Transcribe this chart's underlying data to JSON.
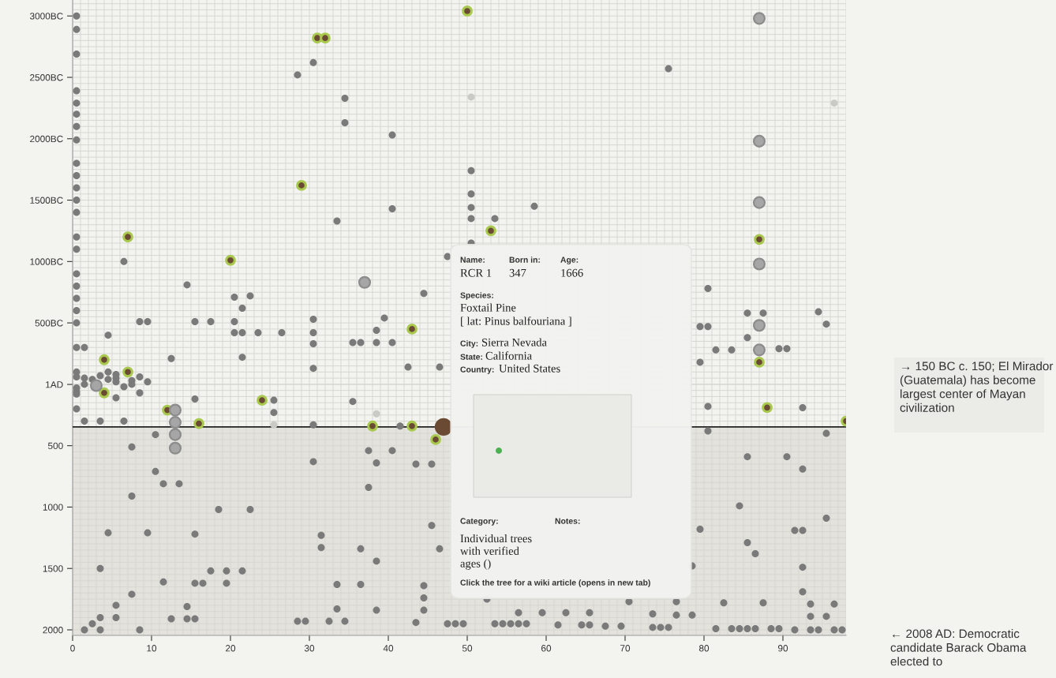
{
  "chart_data": {
    "type": "scatter",
    "marker": "circle",
    "grid": true,
    "xlim": [
      0,
      98
    ],
    "ylim": [
      2045,
      -3130
    ],
    "xticks": [
      0,
      10,
      20,
      30,
      40,
      50,
      60,
      70,
      80,
      90
    ],
    "yticks": [
      {
        "value": -3000,
        "label": "3000BC"
      },
      {
        "value": -2500,
        "label": "2500BC"
      },
      {
        "value": -2000,
        "label": "2000BC"
      },
      {
        "value": -1500,
        "label": "1500BC"
      },
      {
        "value": -1000,
        "label": "1000BC"
      },
      {
        "value": -500,
        "label": "500BC"
      },
      {
        "value": 1,
        "label": "1AD"
      },
      500,
      1000,
      1500,
      2000
    ],
    "ref_lines": [
      {
        "axis": "y",
        "value": 347,
        "color": "#222222"
      }
    ],
    "bands": [
      {
        "axis": "y",
        "from": 347,
        "to": 2045,
        "color": "#dedcd6"
      }
    ],
    "series": [
      {
        "color": "#7a7a7a",
        "x": [
          0.5,
          0.5,
          0.5,
          0.5,
          0.5,
          0.5,
          0.5,
          0.5,
          0.5,
          0.5,
          0.5,
          0.5,
          0.5,
          0.5,
          0.5,
          0.5,
          0.5,
          0.5,
          0.5,
          0.5,
          0.5,
          0.5,
          0.5,
          0.5,
          0.5,
          0.5,
          0.5,
          1.5,
          1.5,
          1.5,
          1.5,
          1.5,
          2.5,
          2.5,
          3.5,
          3.5,
          3.5,
          3.5,
          3.5,
          4.5,
          4.5,
          4.5,
          4.5,
          5.5,
          5.5,
          5.5,
          5.5,
          5.5,
          5.5,
          6.5,
          6.5,
          6.5,
          7.5,
          7.5,
          7.5,
          7.5,
          7.5,
          8.5,
          8.5,
          8.5,
          8.5,
          9.5,
          9.5,
          9.5,
          10.5,
          10.5,
          11.5,
          11.5,
          12.5,
          12.5,
          13.5,
          14.5,
          14.5,
          14.5,
          15.5,
          15.5,
          15.5,
          15.5,
          15.5,
          16.5,
          17.5,
          17.5,
          18.5,
          19.5,
          19.5,
          20.5,
          20.5,
          20.5,
          21.5,
          21.5,
          21.5,
          21.5,
          22.5,
          22.5,
          23.5,
          25.5,
          25.5,
          26.5,
          28.5,
          28.5,
          29.5,
          30.5,
          30.5,
          30.5,
          30.5,
          30.5,
          30.5,
          30.5,
          31.5,
          31.5,
          32.5,
          33.5,
          33.5,
          33.5,
          34.5,
          34.5,
          34.5,
          35.5,
          35.5,
          36.5,
          36.5,
          36.5,
          37.5,
          37.5,
          38.5,
          38.5,
          38.5,
          38.5,
          38.5,
          39.5,
          40.5,
          40.5,
          40.5,
          40.5,
          41.5,
          42.5,
          43.5,
          43.5,
          44.5,
          44.5,
          44.5,
          44.5,
          45.5,
          45.5,
          46.5,
          46.5,
          47.5,
          47.5,
          48.5,
          49.5,
          50.5,
          50.5,
          50.5,
          50.5,
          50.5,
          52.5,
          53.5,
          53.5,
          54.5,
          55.5,
          56.5,
          56.5,
          57.5,
          58.5,
          59.5,
          61.5,
          62.5,
          64.5,
          65.5,
          65.5,
          67.5,
          69.5,
          70.5,
          73.5,
          73.5,
          74.5,
          75.5,
          75.5,
          76.5,
          76.5,
          78.5,
          78.5,
          79.5,
          79.5,
          79.5,
          80.5,
          80.5,
          80.5,
          80.5,
          81.5,
          81.5,
          82.5,
          83.5,
          83.5,
          84.5,
          84.5,
          85.5,
          85.5,
          85.5,
          85.5,
          85.5,
          86.5,
          86.5,
          87.5,
          87.5,
          88.5,
          89.5,
          89.5,
          90.5,
          90.5,
          91.5,
          91.5,
          92.5,
          92.5,
          92.5,
          92.5,
          92.5,
          93.5,
          93.5,
          93.5,
          94.5,
          94.5,
          95.5,
          95.5,
          95.5,
          95.5,
          96.5,
          96.5,
          97.5
        ],
        "values": [
          -3000,
          -2890,
          -2690,
          -2390,
          -2290,
          -2200,
          -2100,
          -1990,
          -1800,
          -1700,
          -1600,
          -1500,
          -1400,
          -1200,
          -1100,
          -900,
          -800,
          -700,
          -600,
          -500,
          -300,
          -100,
          -60,
          30,
          60,
          80,
          200,
          -300,
          -50,
          0,
          300,
          2000,
          -40,
          1950,
          -70,
          300,
          1500,
          1900,
          2000,
          -400,
          -100,
          -40,
          1210,
          -80,
          -50,
          -20,
          110,
          1800,
          1900,
          -1000,
          20,
          300,
          -30,
          0,
          510,
          910,
          1710,
          -510,
          -60,
          70,
          2000,
          -510,
          -20,
          1210,
          410,
          710,
          810,
          1610,
          -210,
          1910,
          810,
          -810,
          1810,
          1910,
          -510,
          120,
          1220,
          1620,
          1910,
          1620,
          -510,
          1520,
          1020,
          1520,
          1620,
          -710,
          -510,
          -420,
          -620,
          -420,
          -220,
          1520,
          -720,
          1020,
          -420,
          130,
          230,
          -420,
          -2520,
          1930,
          1930,
          -2620,
          -530,
          -420,
          -330,
          -130,
          330,
          630,
          1230,
          1330,
          1930,
          -1330,
          1630,
          1830,
          -2330,
          -2130,
          1930,
          -340,
          140,
          -340,
          1340,
          1630,
          540,
          840,
          -440,
          -340,
          640,
          1440,
          1840,
          -540,
          -2030,
          -1430,
          -340,
          540,
          340,
          -140,
          650,
          1940,
          -740,
          1640,
          1740,
          1840,
          650,
          1150,
          -140,
          1340,
          -1040,
          1950,
          1950,
          1950,
          -1740,
          -1550,
          -1440,
          -1350,
          -1150,
          1750,
          -1350,
          1950,
          1950,
          1950,
          1950,
          1860,
          1950,
          -1450,
          1860,
          1960,
          1860,
          1960,
          1960,
          1860,
          1970,
          1970,
          1770,
          1870,
          1980,
          1980,
          1980,
          -2570,
          1770,
          1880,
          1880,
          1480,
          -470,
          -180,
          1180,
          -780,
          -470,
          180,
          380,
          -280,
          1990,
          1780,
          -280,
          1990,
          990,
          1990,
          -580,
          -380,
          590,
          1290,
          1990,
          1380,
          1990,
          -580,
          1780,
          1990,
          -290,
          1990,
          -290,
          590,
          1190,
          2000,
          190,
          690,
          1190,
          1490,
          1690,
          1790,
          1890,
          2000,
          -590,
          2000,
          -490,
          400,
          1090,
          1890,
          1790,
          2000,
          2000
        ]
      },
      {
        "color": "#c9c9c6",
        "x": [
          25.5,
          38.5,
          50.5,
          96.5
        ],
        "values": [
          330,
          240,
          -2340,
          -2290
        ]
      },
      {
        "color": "#6b4a33",
        "x": [
          4,
          4,
          7,
          7,
          12,
          16,
          20,
          24,
          29,
          31,
          32,
          38,
          43,
          43,
          46,
          50,
          53,
          87,
          87,
          88,
          98
        ],
        "values": [
          -200,
          70,
          -1200,
          -100,
          210,
          320,
          -1010,
          130,
          -1620,
          -2820,
          -2820,
          340,
          -450,
          340,
          450,
          -3040,
          -1250,
          -1180,
          -180,
          190,
          300
        ]
      },
      {
        "color": "#a6a6a6",
        "x": [
          3,
          13,
          13,
          13,
          13,
          37,
          87,
          87,
          87,
          87,
          87,
          87
        ],
        "values": [
          10,
          210,
          310,
          410,
          520,
          -830,
          -2980,
          -1980,
          -1480,
          -980,
          -480,
          -280
        ]
      },
      {
        "color": "#6b4a33",
        "x": [
          47
        ],
        "values": [
          347
        ]
      }
    ],
    "annotations": [
      "Name:",
      "RCR 1",
      "Born in:",
      "347",
      "Age:",
      "1666",
      "Species:",
      "Foxtail Pine",
      "[ lat: Pinus balfouriana ]",
      "City:",
      "Sierra Nevada",
      "State:",
      "California",
      "Country:",
      "United States",
      "Category:",
      "Individual trees\nwith verified\nages ()",
      "Notes:",
      "Click the tree for a wiki article (opens in new tab)",
      "→ 150 BC c. 150; El Mirador (Guatemala) has become largest center of Mayan civilization",
      "← 2008 AD: Democratic candidate Barack Obama elected to"
    ]
  }
}
